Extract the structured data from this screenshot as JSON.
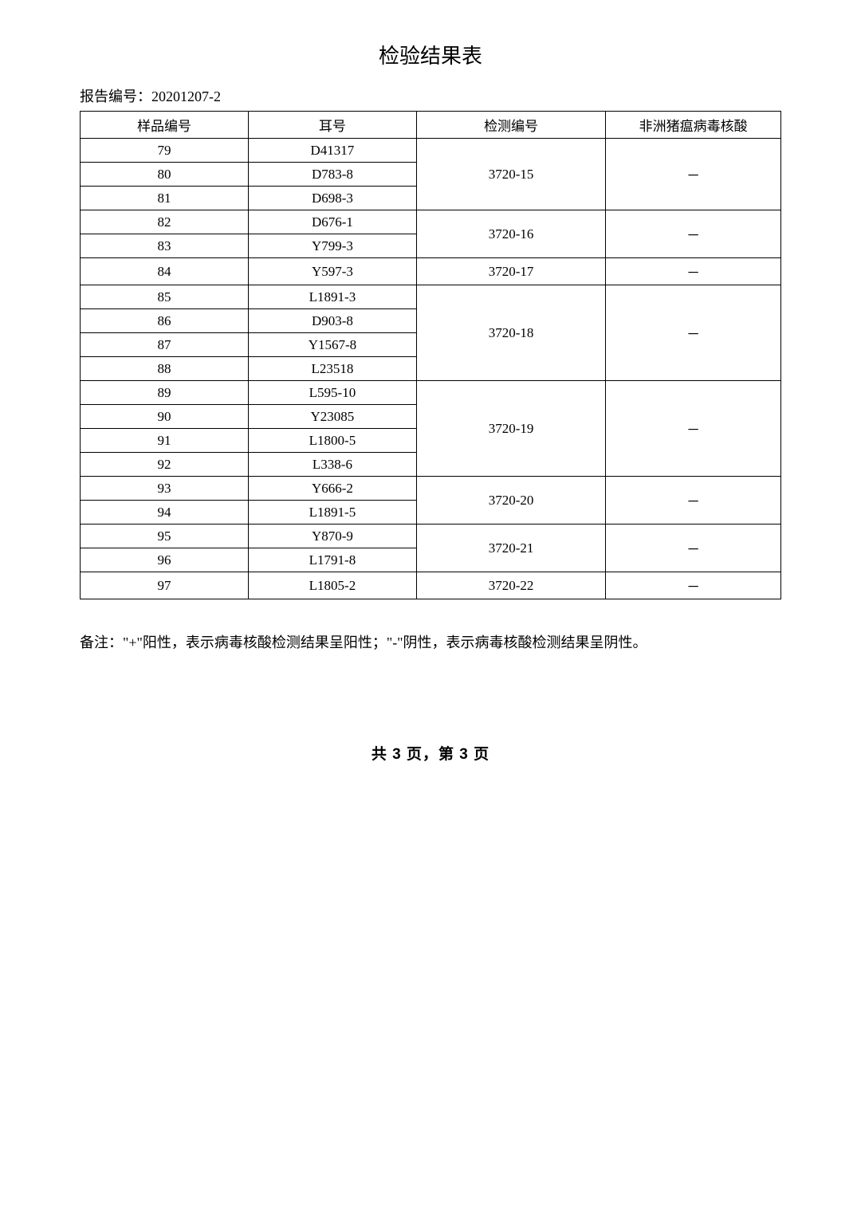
{
  "title": "检验结果表",
  "report_number_label": "报告编号：",
  "report_number_value": "20201207-2",
  "headers": {
    "col1": "样品编号",
    "col2": "耳号",
    "col3": "检测编号",
    "col4": "非洲猪瘟病毒核酸"
  },
  "rows": [
    {
      "sample": "79",
      "ear": "D41317"
    },
    {
      "sample": "80",
      "ear": "D783-8"
    },
    {
      "sample": "81",
      "ear": "D698-3"
    },
    {
      "sample": "82",
      "ear": "D676-1"
    },
    {
      "sample": "83",
      "ear": "Y799-3"
    },
    {
      "sample": "84",
      "ear": "Y597-3"
    },
    {
      "sample": "85",
      "ear": "L1891-3"
    },
    {
      "sample": "86",
      "ear": "D903-8"
    },
    {
      "sample": "87",
      "ear": "Y1567-8"
    },
    {
      "sample": "88",
      "ear": "L23518"
    },
    {
      "sample": "89",
      "ear": "L595-10"
    },
    {
      "sample": "90",
      "ear": "Y23085"
    },
    {
      "sample": "91",
      "ear": "L1800-5"
    },
    {
      "sample": "92",
      "ear": "L338-6"
    },
    {
      "sample": "93",
      "ear": "Y666-2"
    },
    {
      "sample": "94",
      "ear": "L1891-5"
    },
    {
      "sample": "95",
      "ear": "Y870-9"
    },
    {
      "sample": "96",
      "ear": "L1791-8"
    },
    {
      "sample": "97",
      "ear": "L1805-2"
    }
  ],
  "groups": [
    {
      "test_id": "3720-15",
      "result": "－",
      "rowspan": 3
    },
    {
      "test_id": "3720-16",
      "result": "－",
      "rowspan": 2
    },
    {
      "test_id": "3720-17",
      "result": "－",
      "rowspan": 1
    },
    {
      "test_id": "3720-18",
      "result": "－",
      "rowspan": 4
    },
    {
      "test_id": "3720-19",
      "result": "－",
      "rowspan": 4
    },
    {
      "test_id": "3720-20",
      "result": "－",
      "rowspan": 2
    },
    {
      "test_id": "3720-21",
      "result": "－",
      "rowspan": 2
    },
    {
      "test_id": "3720-22",
      "result": "－",
      "rowspan": 1
    }
  ],
  "note": "备注：\"+\"阳性，表示病毒核酸检测结果呈阳性；\"-\"阴性，表示病毒核酸检测结果呈阴性。",
  "pagination": "共 3 页，第 3 页"
}
